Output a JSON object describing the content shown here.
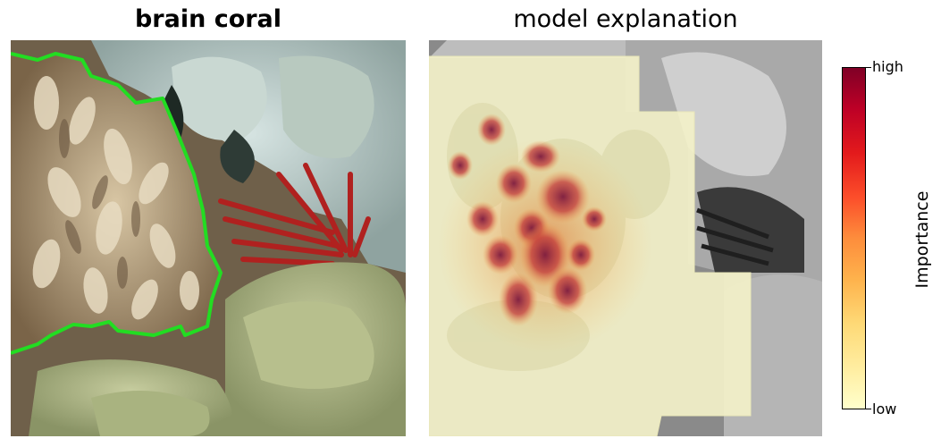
{
  "left_panel": {
    "title": "brain coral",
    "outline_color": "#22dd22"
  },
  "right_panel": {
    "title": "model explanation"
  },
  "colorbar": {
    "label": "Importance",
    "high_label": "high",
    "low_label": "low",
    "colormap": [
      "#ffffcc",
      "#ffeda0",
      "#fed976",
      "#feb24c",
      "#fd8d3c",
      "#fc4e2a",
      "#e31a1c",
      "#bd0026",
      "#800026"
    ]
  }
}
